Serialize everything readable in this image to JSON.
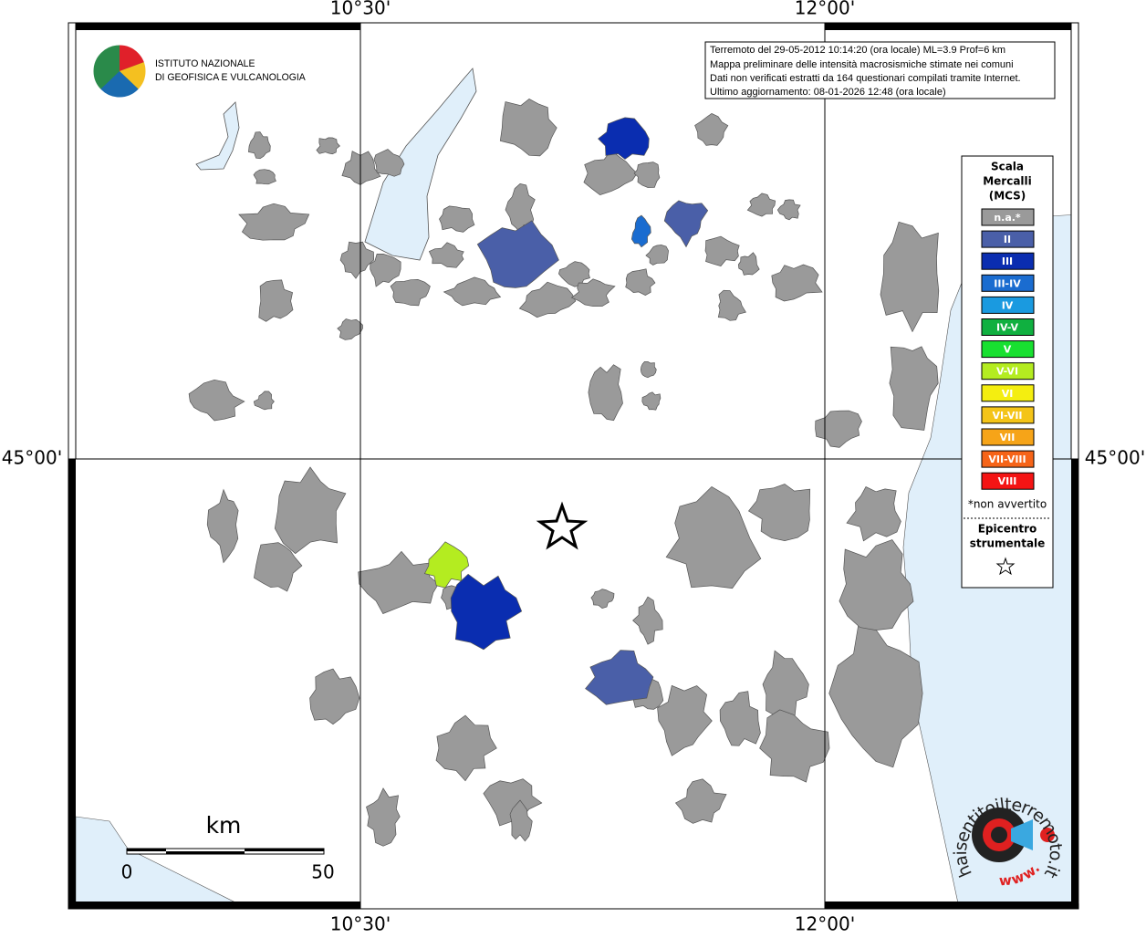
{
  "axes": {
    "top": [
      "10°30'",
      "12°00'"
    ],
    "bottom": [
      "10°30'",
      "12°00'"
    ],
    "left": [
      "45°00'"
    ],
    "right": [
      "45°00'"
    ]
  },
  "info_box": {
    "lines": [
      "Terremoto del 29-05-2012 10:14:20 (ora locale) ML=3.9 Prof=6 km",
      "Mappa preliminare delle intensità macrosismiche stimate nei comuni",
      "Dati non verificati estratti da 164 questionari compilati tramite Internet.",
      "Ultimo aggiornamento: 08-01-2026 12:48 (ora locale)"
    ]
  },
  "legend": {
    "title": [
      "Scala",
      "Mercalli",
      "(MCS)"
    ],
    "items": [
      {
        "label": "n.a.*",
        "color": "#9a9a9a"
      },
      {
        "label": "II",
        "color": "#4a5fa8"
      },
      {
        "label": "III",
        "color": "#0a2db0"
      },
      {
        "label": "III-IV",
        "color": "#1a6cd0"
      },
      {
        "label": "IV",
        "color": "#1a9ae0"
      },
      {
        "label": "IV-V",
        "color": "#10b040"
      },
      {
        "label": "V",
        "color": "#18e030"
      },
      {
        "label": "V-VI",
        "color": "#b4ec20"
      },
      {
        "label": "VI",
        "color": "#f4ee10"
      },
      {
        "label": "VI-VII",
        "color": "#f4c418"
      },
      {
        "label": "VII",
        "color": "#f6a418"
      },
      {
        "label": "VII-VIII",
        "color": "#f66418"
      },
      {
        "label": "VIII",
        "color": "#f41414"
      }
    ],
    "note": "*non avvertito",
    "epicenter": [
      "Epicentro",
      "strumentale"
    ]
  },
  "scale_bar": {
    "unit": "km",
    "labels": [
      "0",
      "50"
    ]
  },
  "logos": {
    "ingv": [
      "ISTITUTO NAZIONALE",
      "DI GEOFISICA E VULCANOLOGIA"
    ],
    "haisentito": [
      "haisentitoilterremoto.it",
      "www."
    ]
  }
}
